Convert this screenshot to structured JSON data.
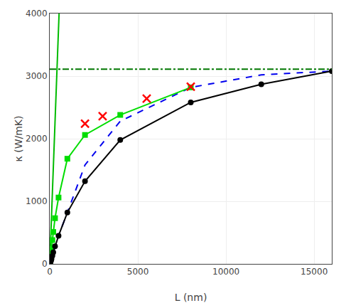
{
  "chart_data": {
    "type": "line",
    "title": "",
    "x_label": "L (nm)",
    "y_label": "κ (W/mK)",
    "xlim": [
      0,
      16000
    ],
    "ylim": [
      0,
      4000
    ],
    "xticks": [
      0,
      5000,
      10000,
      15000
    ],
    "yticks": [
      0,
      1000,
      2000,
      3000,
      4000
    ],
    "grid": true,
    "series": [
      {
        "type": "line",
        "color": "#00bb00",
        "line_style": "solid",
        "x": [
          0,
          530
        ],
        "values": [
          0,
          4000
        ]
      },
      {
        "type": "hline",
        "color": "#007700",
        "line_style": "dashdot",
        "values": [
          3110
        ]
      },
      {
        "type": "line",
        "color": "#0000ee",
        "line_style": "dash",
        "x": [
          25,
          50,
          100,
          200,
          500,
          1000,
          2000,
          4000,
          8000,
          12000,
          16000
        ],
        "values": [
          15,
          35,
          80,
          185,
          450,
          820,
          1580,
          2280,
          2820,
          3020,
          3080
        ]
      },
      {
        "type": "line",
        "color": "#00dd00",
        "line_style": "solid",
        "marker": "square",
        "x": [
          25,
          50,
          75,
          100,
          150,
          200,
          300,
          500,
          1000,
          2000,
          4000,
          8000
        ],
        "values": [
          50,
          100,
          165,
          240,
          380,
          510,
          730,
          1060,
          1680,
          2060,
          2380,
          2820
        ]
      },
      {
        "type": "line",
        "color": "#000000",
        "line_style": "solid",
        "marker": "circle",
        "x": [
          25,
          50,
          75,
          100,
          150,
          200,
          300,
          500,
          1000,
          2000,
          4000,
          8000,
          12000,
          16000
        ],
        "values": [
          15,
          35,
          55,
          80,
          130,
          185,
          280,
          450,
          820,
          1320,
          1980,
          2580,
          2870,
          3080
        ]
      },
      {
        "type": "scatter",
        "color": "#ff0000",
        "marker": "x",
        "x": [
          2000,
          3000,
          5500,
          8000
        ],
        "values": [
          2240,
          2360,
          2640,
          2830
        ]
      }
    ]
  }
}
